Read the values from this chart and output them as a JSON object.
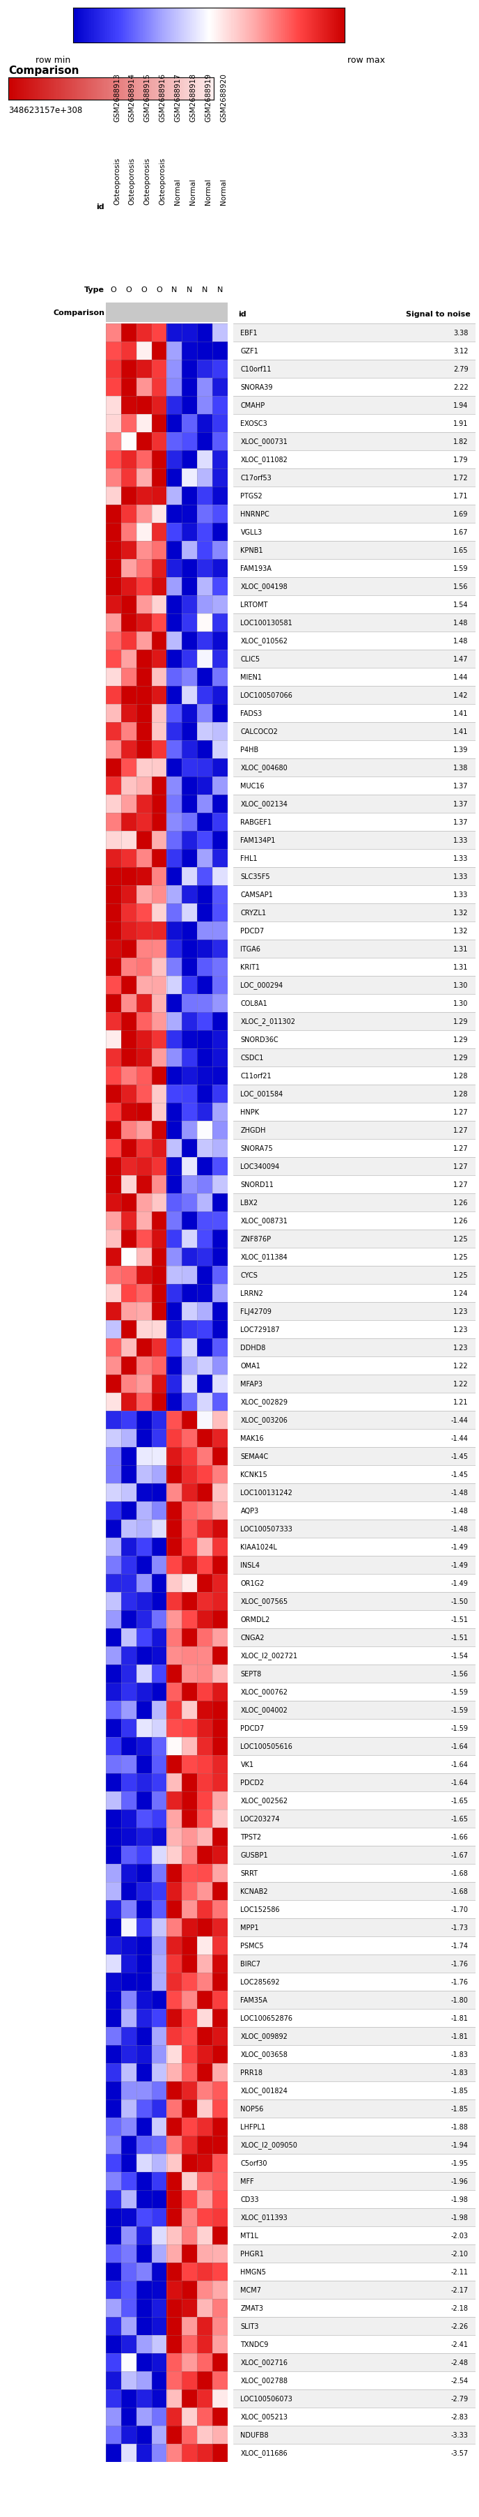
{
  "genes": [
    {
      "id": "EBF1",
      "signal_to_noise": 3.38
    },
    {
      "id": "GZF1",
      "signal_to_noise": 3.12
    },
    {
      "id": "C10orf11",
      "signal_to_noise": 2.79
    },
    {
      "id": "SNORA39",
      "signal_to_noise": 2.22
    },
    {
      "id": "CMAHP",
      "signal_to_noise": 1.94
    },
    {
      "id": "EXOSC3",
      "signal_to_noise": 1.91
    },
    {
      "id": "XLOC_000731",
      "signal_to_noise": 1.82
    },
    {
      "id": "XLOC_011082",
      "signal_to_noise": 1.79
    },
    {
      "id": "C17orf53",
      "signal_to_noise": 1.72
    },
    {
      "id": "PTGS2",
      "signal_to_noise": 1.71
    },
    {
      "id": "HNRNPC",
      "signal_to_noise": 1.69
    },
    {
      "id": "VGLL3",
      "signal_to_noise": 1.67
    },
    {
      "id": "KPNB1",
      "signal_to_noise": 1.65
    },
    {
      "id": "FAM193A",
      "signal_to_noise": 1.59
    },
    {
      "id": "XLOC_004198",
      "signal_to_noise": 1.56
    },
    {
      "id": "LRTOMT",
      "signal_to_noise": 1.54
    },
    {
      "id": "LOC100130581",
      "signal_to_noise": 1.48
    },
    {
      "id": "XLOC_010562",
      "signal_to_noise": 1.48
    },
    {
      "id": "CLIC5",
      "signal_to_noise": 1.47
    },
    {
      "id": "MIEN1",
      "signal_to_noise": 1.44
    },
    {
      "id": "LOC100507066",
      "signal_to_noise": 1.42
    },
    {
      "id": "FADS3",
      "signal_to_noise": 1.41
    },
    {
      "id": "CALCOCO2",
      "signal_to_noise": 1.41
    },
    {
      "id": "P4HB",
      "signal_to_noise": 1.39
    },
    {
      "id": "XLOC_004680",
      "signal_to_noise": 1.38
    },
    {
      "id": "MUC16",
      "signal_to_noise": 1.37
    },
    {
      "id": "XLOC_002134",
      "signal_to_noise": 1.37
    },
    {
      "id": "RABGEF1",
      "signal_to_noise": 1.37
    },
    {
      "id": "FAM134P1",
      "signal_to_noise": 1.33
    },
    {
      "id": "FHL1",
      "signal_to_noise": 1.33
    },
    {
      "id": "SLC35F5",
      "signal_to_noise": 1.33
    },
    {
      "id": "CAMSAP1",
      "signal_to_noise": 1.33
    },
    {
      "id": "CRYZL1",
      "signal_to_noise": 1.32
    },
    {
      "id": "PDCD7",
      "signal_to_noise": 1.32
    },
    {
      "id": "ITGA6",
      "signal_to_noise": 1.31
    },
    {
      "id": "KRIT1",
      "signal_to_noise": 1.31
    },
    {
      "id": "LOC_000294",
      "signal_to_noise": 1.3
    },
    {
      "id": "COL8A1",
      "signal_to_noise": 1.3
    },
    {
      "id": "XLOC_2_011302",
      "signal_to_noise": 1.29
    },
    {
      "id": "SNORD36C",
      "signal_to_noise": 1.29
    },
    {
      "id": "CSDC1",
      "signal_to_noise": 1.29
    },
    {
      "id": "C11orf21",
      "signal_to_noise": 1.28
    },
    {
      "id": "LOC_001584",
      "signal_to_noise": 1.28
    },
    {
      "id": "HNPK",
      "signal_to_noise": 1.27
    },
    {
      "id": "ZHGDH",
      "signal_to_noise": 1.27
    },
    {
      "id": "SNORA75",
      "signal_to_noise": 1.27
    },
    {
      "id": "LOC340094",
      "signal_to_noise": 1.27
    },
    {
      "id": "SNORD11",
      "signal_to_noise": 1.27
    },
    {
      "id": "LBX2",
      "signal_to_noise": 1.26
    },
    {
      "id": "XLOC_008731",
      "signal_to_noise": 1.26
    },
    {
      "id": "ZNF876P",
      "signal_to_noise": 1.25
    },
    {
      "id": "XLOC_011384",
      "signal_to_noise": 1.25
    },
    {
      "id": "CYCS",
      "signal_to_noise": 1.25
    },
    {
      "id": "LRRN2",
      "signal_to_noise": 1.24
    },
    {
      "id": "FLJ42709",
      "signal_to_noise": 1.23
    },
    {
      "id": "LOC729187",
      "signal_to_noise": 1.23
    },
    {
      "id": "DDHD8",
      "signal_to_noise": 1.23
    },
    {
      "id": "OMA1",
      "signal_to_noise": 1.22
    },
    {
      "id": "MFAP3",
      "signal_to_noise": 1.22
    },
    {
      "id": "XLOC_002829",
      "signal_to_noise": 1.21
    },
    {
      "id": "XLOC_003206",
      "signal_to_noise": -1.44
    },
    {
      "id": "MAK16",
      "signal_to_noise": -1.44
    },
    {
      "id": "SEMA4C",
      "signal_to_noise": -1.45
    },
    {
      "id": "KCNK15",
      "signal_to_noise": -1.45
    },
    {
      "id": "LOC100131242",
      "signal_to_noise": -1.48
    },
    {
      "id": "AQP3",
      "signal_to_noise": -1.48
    },
    {
      "id": "LOC100507333",
      "signal_to_noise": -1.48
    },
    {
      "id": "KIAA1024L",
      "signal_to_noise": -1.49
    },
    {
      "id": "INSL4",
      "signal_to_noise": -1.49
    },
    {
      "id": "OR1G2",
      "signal_to_noise": -1.49
    },
    {
      "id": "XLOC_007565",
      "signal_to_noise": -1.5
    },
    {
      "id": "ORMDL2",
      "signal_to_noise": -1.51
    },
    {
      "id": "CNGA2",
      "signal_to_noise": -1.51
    },
    {
      "id": "XLOC_I2_002721",
      "signal_to_noise": -1.54
    },
    {
      "id": "SEPT8",
      "signal_to_noise": -1.56
    },
    {
      "id": "XLOC_000762",
      "signal_to_noise": -1.59
    },
    {
      "id": "XLOC_004002",
      "signal_to_noise": -1.59
    },
    {
      "id": "PDCD7",
      "signal_to_noise": -1.59
    },
    {
      "id": "LOC100505616",
      "signal_to_noise": -1.64
    },
    {
      "id": "VK1",
      "signal_to_noise": -1.64
    },
    {
      "id": "PDCD2",
      "signal_to_noise": -1.64
    },
    {
      "id": "XLOC_002562",
      "signal_to_noise": -1.65
    },
    {
      "id": "LOC203274",
      "signal_to_noise": -1.65
    },
    {
      "id": "TPST2",
      "signal_to_noise": -1.66
    },
    {
      "id": "GUSBP1",
      "signal_to_noise": -1.67
    },
    {
      "id": "SRRT",
      "signal_to_noise": -1.68
    },
    {
      "id": "KCNAB2",
      "signal_to_noise": -1.68
    },
    {
      "id": "LOC152586",
      "signal_to_noise": -1.7
    },
    {
      "id": "MPP1",
      "signal_to_noise": -1.73
    },
    {
      "id": "PSMC5",
      "signal_to_noise": -1.74
    },
    {
      "id": "BIRC7",
      "signal_to_noise": -1.76
    },
    {
      "id": "LOC285692",
      "signal_to_noise": -1.76
    },
    {
      "id": "FAM35A",
      "signal_to_noise": -1.8
    },
    {
      "id": "LOC100652876",
      "signal_to_noise": -1.81
    },
    {
      "id": "XLOC_009892",
      "signal_to_noise": -1.81
    },
    {
      "id": "XLOC_003658",
      "signal_to_noise": -1.83
    },
    {
      "id": "PRR18",
      "signal_to_noise": -1.83
    },
    {
      "id": "XLOC_001824",
      "signal_to_noise": -1.85
    },
    {
      "id": "NOP56",
      "signal_to_noise": -1.85
    },
    {
      "id": "LHFPL1",
      "signal_to_noise": -1.88
    },
    {
      "id": "XLOC_I2_009050",
      "signal_to_noise": -1.94
    },
    {
      "id": "C5orf30",
      "signal_to_noise": -1.95
    },
    {
      "id": "MFF",
      "signal_to_noise": -1.96
    },
    {
      "id": "CD33",
      "signal_to_noise": -1.98
    },
    {
      "id": "XLOC_011393",
      "signal_to_noise": -1.98
    },
    {
      "id": "MT1L",
      "signal_to_noise": -2.03
    },
    {
      "id": "PHGR1",
      "signal_to_noise": -2.1
    },
    {
      "id": "HMGN5",
      "signal_to_noise": -2.11
    },
    {
      "id": "MCM7",
      "signal_to_noise": -2.17
    },
    {
      "id": "ZMAT3",
      "signal_to_noise": -2.18
    },
    {
      "id": "SLIT3",
      "signal_to_noise": -2.26
    },
    {
      "id": "TXNDC9",
      "signal_to_noise": -2.41
    },
    {
      "id": "XLOC_002716",
      "signal_to_noise": -2.48
    },
    {
      "id": "XLOC_002788",
      "signal_to_noise": -2.54
    },
    {
      "id": "LOC100506073",
      "signal_to_noise": -2.79
    },
    {
      "id": "XLOC_005213",
      "signal_to_noise": -2.83
    },
    {
      "id": "NDUFB8",
      "signal_to_noise": -3.33
    },
    {
      "id": "XLOC_011686",
      "signal_to_noise": -3.57
    }
  ],
  "samples": [
    "GSM2688913",
    "GSM2688914",
    "GSM2688915",
    "GSM2688916",
    "GSM2688917",
    "GSM2688918",
    "GSM2688919",
    "GSM2688920"
  ],
  "sample_types": [
    "Osteoporosis",
    "Osteoporosis",
    "Osteoporosis",
    "Osteoporosis",
    "Normal",
    "Normal",
    "Normal",
    "Normal"
  ],
  "type_labels": [
    "O",
    "O",
    "O",
    "O",
    "N",
    "N",
    "N",
    "N"
  ],
  "colorbar_label_min": "row min",
  "colorbar_label_max": "row max",
  "comparison_label": "Comparison",
  "comparison_number": "348623157e+308",
  "id_label": "id",
  "signal_to_noise_label": "Signal to noise",
  "type_label": "Type",
  "bg_row_even": "#f0f0f0",
  "bg_row_odd": "#ffffff",
  "comparison_bar_color_left": "#cc0000",
  "comparison_bar_color_right": "#ffeeee",
  "grid_color": "#888888",
  "separator_line_color": "#aaaaaa"
}
